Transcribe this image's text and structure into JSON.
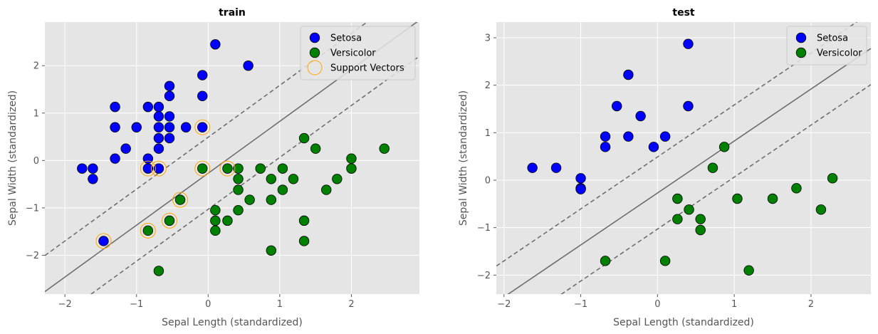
{
  "chart_data": [
    {
      "type": "scatter",
      "title": "train",
      "xlabel": "Sepal Length (standardized)",
      "ylabel": "Sepal Width (standardized)",
      "xlim": [
        -2.28,
        2.95
      ],
      "ylim": [
        -2.82,
        2.92
      ],
      "xticks": [
        -2,
        -1,
        0,
        1,
        2
      ],
      "yticks": [
        -2,
        -1,
        0,
        1,
        2
      ],
      "grid": true,
      "legend_position": "top-right",
      "boundary": {
        "slope": 1.095,
        "intercept": -0.27,
        "margin": 0.76
      },
      "series": [
        {
          "name": "Setosa",
          "color": "#0000ff",
          "marker": "filled-circle",
          "points": [
            [
              0.1,
              2.45
            ],
            [
              0.56,
              2.0
            ],
            [
              -0.08,
              1.8
            ],
            [
              -0.54,
              1.57
            ],
            [
              -0.31,
              0.7
            ],
            [
              -0.08,
              1.36
            ],
            [
              -1.3,
              1.13
            ],
            [
              -0.84,
              1.13
            ],
            [
              -0.69,
              1.13
            ],
            [
              -0.54,
              1.36
            ],
            [
              -0.69,
              0.93
            ],
            [
              -0.54,
              0.93
            ],
            [
              -0.69,
              0.7
            ],
            [
              -0.54,
              0.7
            ],
            [
              -0.69,
              0.47
            ],
            [
              -0.54,
              0.47
            ],
            [
              -0.69,
              0.25
            ],
            [
              -1.3,
              0.7
            ],
            [
              -1.0,
              0.7
            ],
            [
              -1.15,
              0.25
            ],
            [
              -1.3,
              0.04
            ],
            [
              -0.84,
              0.04
            ],
            [
              -1.76,
              -0.17
            ],
            [
              -1.61,
              -0.17
            ],
            [
              -1.61,
              -0.39
            ],
            [
              -0.84,
              -0.17
            ],
            [
              -0.69,
              -0.17
            ],
            [
              -0.08,
              0.7
            ],
            [
              -1.46,
              -1.7
            ]
          ]
        },
        {
          "name": "Versicolor",
          "color": "#008000",
          "marker": "filled-circle",
          "points": [
            [
              1.34,
              0.47
            ],
            [
              1.5,
              0.25
            ],
            [
              2.0,
              0.04
            ],
            [
              2.46,
              0.25
            ],
            [
              2.0,
              -0.17
            ],
            [
              1.8,
              -0.39
            ],
            [
              1.65,
              -0.62
            ],
            [
              1.34,
              -1.27
            ],
            [
              1.34,
              -1.7
            ],
            [
              1.19,
              -0.39
            ],
            [
              1.04,
              -0.17
            ],
            [
              1.04,
              -0.62
            ],
            [
              0.88,
              -0.39
            ],
            [
              0.88,
              -0.83
            ],
            [
              0.88,
              -1.9
            ],
            [
              0.73,
              -0.17
            ],
            [
              0.58,
              -0.83
            ],
            [
              0.42,
              -0.17
            ],
            [
              0.42,
              -0.39
            ],
            [
              0.42,
              -0.62
            ],
            [
              0.42,
              -1.05
            ],
            [
              0.27,
              -0.17
            ],
            [
              0.27,
              -1.27
            ],
            [
              0.1,
              -1.05
            ],
            [
              0.1,
              -1.27
            ],
            [
              0.1,
              -1.48
            ],
            [
              -0.08,
              -0.17
            ],
            [
              -0.39,
              -0.83
            ],
            [
              -0.54,
              -1.27
            ],
            [
              -0.84,
              -1.48
            ],
            [
              -0.69,
              -2.33
            ]
          ]
        },
        {
          "name": "Support Vectors",
          "color": "#ffa500",
          "marker": "hollow-circle",
          "points": [
            [
              -0.08,
              0.7
            ],
            [
              -0.84,
              -0.17
            ],
            [
              -0.69,
              -0.17
            ],
            [
              -0.08,
              -0.17
            ],
            [
              0.27,
              -0.17
            ],
            [
              -0.39,
              -0.83
            ],
            [
              -0.54,
              -1.27
            ],
            [
              -0.84,
              -1.48
            ],
            [
              -1.46,
              -1.7
            ]
          ]
        }
      ]
    },
    {
      "type": "scatter",
      "title": "test",
      "xlabel": "Sepal Length (standardized)",
      "ylabel": "Sepal Width (standardized)",
      "xlim": [
        -2.1,
        2.78
      ],
      "ylim": [
        -2.4,
        3.33
      ],
      "xticks": [
        -2,
        -1,
        0,
        1,
        2
      ],
      "yticks": [
        -2,
        -1,
        0,
        1,
        2,
        3
      ],
      "grid": true,
      "legend_position": "top-right",
      "boundary": {
        "slope": 1.095,
        "intercept": -0.27,
        "margin": 0.76
      },
      "series": [
        {
          "name": "Setosa",
          "color": "#0000ff",
          "marker": "filled-circle",
          "points": [
            [
              0.4,
              2.87
            ],
            [
              -0.38,
              2.22
            ],
            [
              -0.53,
              1.56
            ],
            [
              0.4,
              1.56
            ],
            [
              -0.22,
              1.35
            ],
            [
              -0.68,
              0.92
            ],
            [
              -0.38,
              0.92
            ],
            [
              0.1,
              0.92
            ],
            [
              -0.68,
              0.7
            ],
            [
              -0.05,
              0.7
            ],
            [
              -1.63,
              0.26
            ],
            [
              -1.32,
              0.26
            ],
            [
              -1.0,
              0.04
            ],
            [
              -1.0,
              -0.17
            ],
            [
              -1.0,
              -0.19
            ]
          ]
        },
        {
          "name": "Versicolor",
          "color": "#008000",
          "marker": "filled-circle",
          "points": [
            [
              0.87,
              0.7
            ],
            [
              0.72,
              0.26
            ],
            [
              2.28,
              0.04
            ],
            [
              1.81,
              -0.17
            ],
            [
              2.13,
              -0.62
            ],
            [
              1.5,
              -0.39
            ],
            [
              1.04,
              -0.39
            ],
            [
              0.26,
              -0.39
            ],
            [
              0.26,
              -0.82
            ],
            [
              0.41,
              -0.62
            ],
            [
              0.56,
              -0.82
            ],
            [
              0.56,
              -1.05
            ],
            [
              -0.68,
              -1.7
            ],
            [
              0.1,
              -1.7
            ],
            [
              1.19,
              -1.9
            ]
          ]
        }
      ]
    }
  ]
}
